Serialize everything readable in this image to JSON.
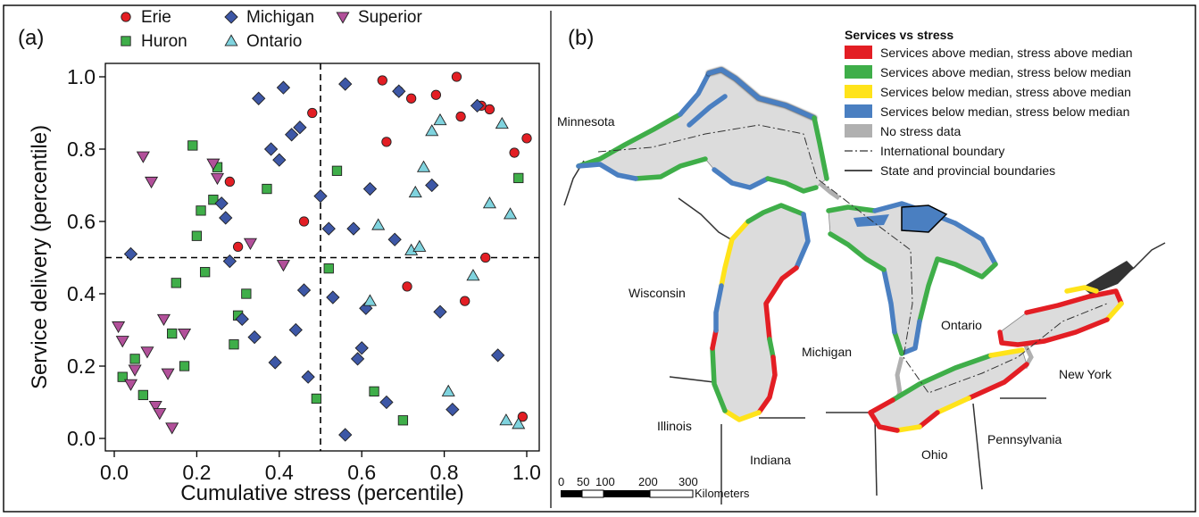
{
  "panel_a": {
    "label": "(a)",
    "chart_data": {
      "type": "scatter",
      "xlabel": "Cumulative stress (percentile)",
      "ylabel": "Service delivery (percentile)",
      "xlim": [
        0,
        1
      ],
      "ylim": [
        0,
        1
      ],
      "xticks": [
        "0.0",
        "0.2",
        "0.4",
        "0.6",
        "0.8",
        "1.0"
      ],
      "yticks": [
        "0.0",
        "0.2",
        "0.4",
        "0.6",
        "0.8",
        "1.0"
      ],
      "reference_lines": {
        "x": 0.5,
        "y": 0.5
      },
      "legend_placement": "top",
      "series": [
        {
          "name": "Erie",
          "marker": "circle",
          "color": "#e31e24",
          "points": [
            [
              0.28,
              0.71
            ],
            [
              0.3,
              0.53
            ],
            [
              0.46,
              0.6
            ],
            [
              0.48,
              0.9
            ],
            [
              0.65,
              0.99
            ],
            [
              0.66,
              0.82
            ],
            [
              0.69,
              0.96
            ],
            [
              0.71,
              0.42
            ],
            [
              0.72,
              0.94
            ],
            [
              0.78,
              0.95
            ],
            [
              0.83,
              1.0
            ],
            [
              0.84,
              0.89
            ],
            [
              0.85,
              0.38
            ],
            [
              0.89,
              0.92
            ],
            [
              0.9,
              0.5
            ],
            [
              0.91,
              0.91
            ],
            [
              0.97,
              0.79
            ],
            [
              0.99,
              0.06
            ],
            [
              1.0,
              0.83
            ]
          ]
        },
        {
          "name": "Huron",
          "marker": "square",
          "color": "#3fae49",
          "points": [
            [
              0.02,
              0.17
            ],
            [
              0.05,
              0.22
            ],
            [
              0.07,
              0.12
            ],
            [
              0.14,
              0.29
            ],
            [
              0.15,
              0.43
            ],
            [
              0.17,
              0.2
            ],
            [
              0.19,
              0.81
            ],
            [
              0.2,
              0.56
            ],
            [
              0.21,
              0.63
            ],
            [
              0.22,
              0.46
            ],
            [
              0.24,
              0.66
            ],
            [
              0.25,
              0.75
            ],
            [
              0.29,
              0.26
            ],
            [
              0.3,
              0.34
            ],
            [
              0.32,
              0.4
            ],
            [
              0.37,
              0.69
            ],
            [
              0.49,
              0.11
            ],
            [
              0.52,
              0.47
            ],
            [
              0.54,
              0.74
            ],
            [
              0.63,
              0.13
            ],
            [
              0.7,
              0.05
            ],
            [
              0.98,
              0.72
            ]
          ]
        },
        {
          "name": "Michigan",
          "marker": "diamond",
          "color": "#3d57a6",
          "points": [
            [
              0.04,
              0.51
            ],
            [
              0.26,
              0.65
            ],
            [
              0.27,
              0.61
            ],
            [
              0.28,
              0.49
            ],
            [
              0.31,
              0.33
            ],
            [
              0.34,
              0.28
            ],
            [
              0.35,
              0.94
            ],
            [
              0.38,
              0.8
            ],
            [
              0.39,
              0.21
            ],
            [
              0.4,
              0.77
            ],
            [
              0.41,
              0.97
            ],
            [
              0.43,
              0.84
            ],
            [
              0.44,
              0.3
            ],
            [
              0.45,
              0.86
            ],
            [
              0.46,
              0.41
            ],
            [
              0.47,
              0.17
            ],
            [
              0.5,
              0.67
            ],
            [
              0.52,
              0.58
            ],
            [
              0.53,
              0.39
            ],
            [
              0.56,
              0.98
            ],
            [
              0.56,
              0.01
            ],
            [
              0.58,
              0.58
            ],
            [
              0.59,
              0.22
            ],
            [
              0.6,
              0.25
            ],
            [
              0.61,
              0.36
            ],
            [
              0.62,
              0.69
            ],
            [
              0.66,
              0.1
            ],
            [
              0.68,
              0.55
            ],
            [
              0.69,
              0.96
            ],
            [
              0.77,
              0.7
            ],
            [
              0.79,
              0.35
            ],
            [
              0.82,
              0.08
            ],
            [
              0.88,
              0.92
            ],
            [
              0.93,
              0.23
            ]
          ]
        },
        {
          "name": "Ontario",
          "marker": "triangle-up",
          "color": "#7fd3de",
          "points": [
            [
              0.62,
              0.38
            ],
            [
              0.64,
              0.59
            ],
            [
              0.72,
              0.52
            ],
            [
              0.73,
              0.68
            ],
            [
              0.74,
              0.53
            ],
            [
              0.75,
              0.75
            ],
            [
              0.77,
              0.85
            ],
            [
              0.79,
              0.88
            ],
            [
              0.81,
              0.13
            ],
            [
              0.87,
              0.45
            ],
            [
              0.91,
              0.65
            ],
            [
              0.94,
              0.87
            ],
            [
              0.95,
              0.05
            ],
            [
              0.96,
              0.62
            ],
            [
              0.98,
              0.04
            ]
          ]
        },
        {
          "name": "Superior",
          "marker": "triangle-down",
          "color": "#b2509a",
          "points": [
            [
              0.01,
              0.31
            ],
            [
              0.02,
              0.27
            ],
            [
              0.04,
              0.15
            ],
            [
              0.05,
              0.19
            ],
            [
              0.07,
              0.78
            ],
            [
              0.08,
              0.24
            ],
            [
              0.09,
              0.71
            ],
            [
              0.1,
              0.09
            ],
            [
              0.11,
              0.07
            ],
            [
              0.12,
              0.33
            ],
            [
              0.13,
              0.18
            ],
            [
              0.14,
              0.03
            ],
            [
              0.17,
              0.29
            ],
            [
              0.24,
              0.76
            ],
            [
              0.25,
              0.72
            ],
            [
              0.33,
              0.54
            ],
            [
              0.41,
              0.48
            ]
          ]
        }
      ]
    }
  },
  "panel_b": {
    "label": "(b)",
    "legend_title": "Services vs  stress",
    "legend_items": [
      {
        "label": "Services above median, stress above median",
        "color": "#e31e24"
      },
      {
        "label": "Services above median, stress below median",
        "color": "#3fae49"
      },
      {
        "label": "Services below median, stress above median",
        "color": "#ffe31a"
      },
      {
        "label": "Services below median, stress below median",
        "color": "#4a7fc1"
      },
      {
        "label": "No stress data",
        "color": "#b0b0b0"
      }
    ],
    "line_legend": [
      {
        "label": "International boundary",
        "style": "dash-dot"
      },
      {
        "label": "State and provincial boundaries",
        "style": "solid"
      }
    ],
    "place_labels": {
      "minnesota": "Minnesota",
      "wisconsin": "Wisconsin",
      "michigan": "Michigan",
      "ontario": "Ontario",
      "illinois": "Illinois",
      "indiana": "Indiana",
      "ohio": "Ohio",
      "pennsylvania": "Pennsylvania",
      "new_york": "New York"
    },
    "scale_bar": {
      "tick_labels": [
        "0",
        "50",
        "100",
        "200",
        "300"
      ],
      "unit": "Kilometers"
    }
  }
}
